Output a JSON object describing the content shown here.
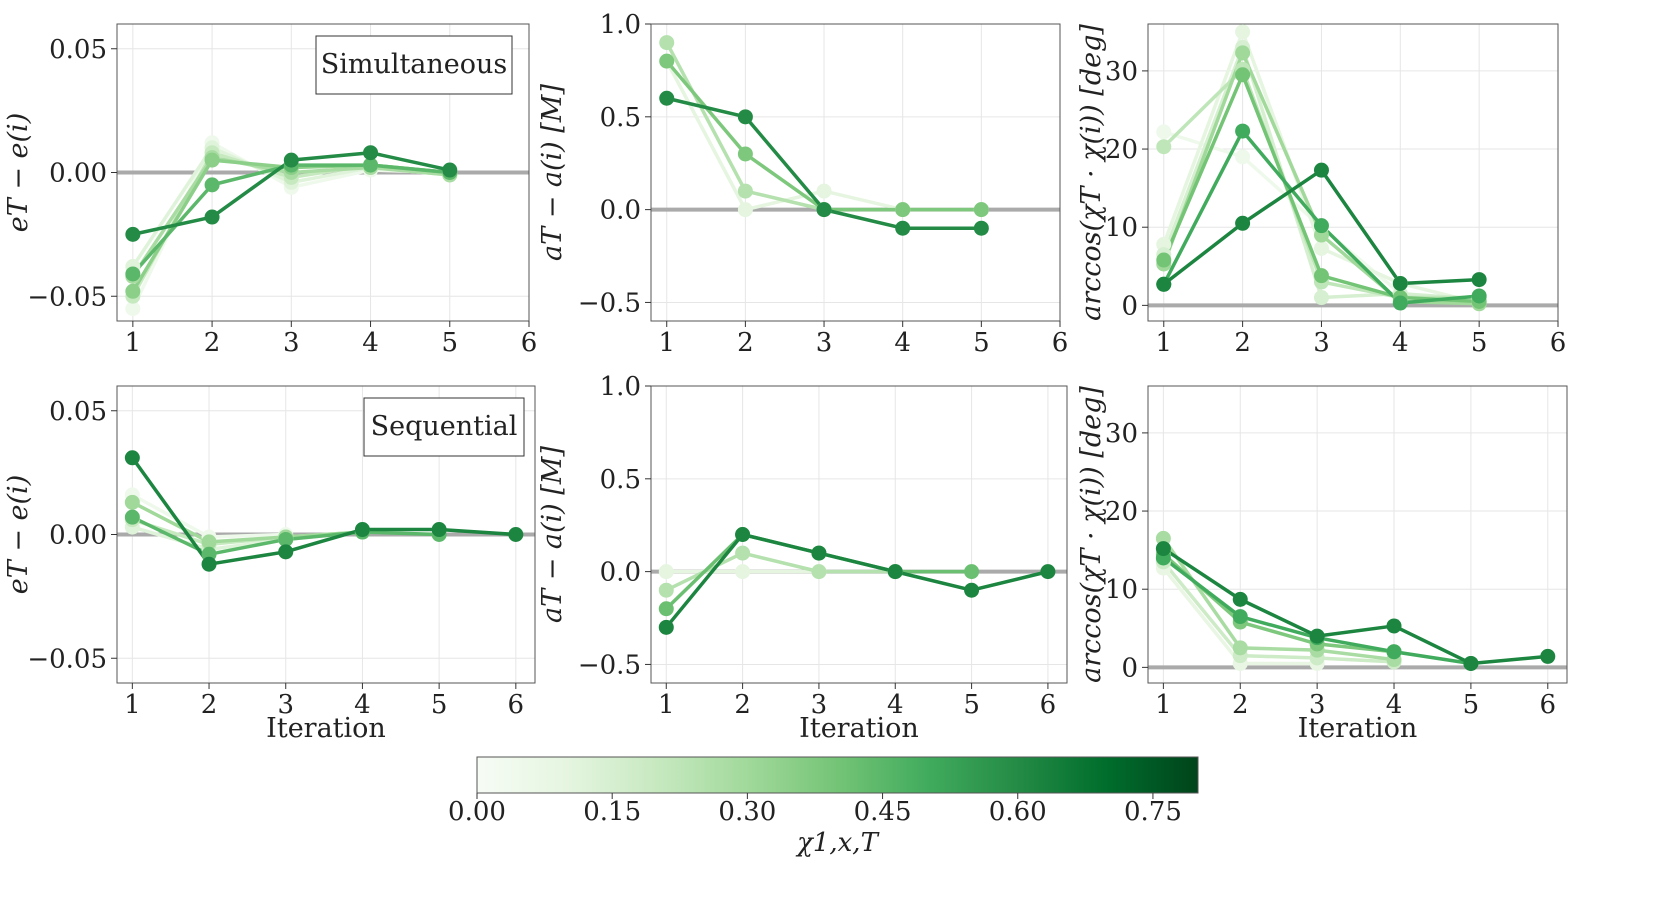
{
  "colors": {
    "low": "#c7e9c0",
    "mid": "#74c476",
    "high": "#1a8a45",
    "reference_line": "#aaaaaa",
    "grid": "#e6e6e6"
  },
  "colorbar": {
    "ticks": [
      "0.00",
      "0.15",
      "0.30",
      "0.45",
      "0.60",
      "0.75"
    ],
    "label": "χ1,x,T",
    "min": 0,
    "max": 0.8,
    "stops": [
      "#f7fcf5",
      "#e5f5e0",
      "#c7e9c0",
      "#a1d99b",
      "#74c476",
      "#41ab5d",
      "#238b45",
      "#006d2c",
      "#00441b"
    ]
  },
  "chart_data": [
    {
      "id": "e-simultaneous",
      "type": "line",
      "row": "Simultaneous",
      "legend": "Simultaneous",
      "xlabel": "",
      "ylabel": "eT − e(i)",
      "xlim": [
        0.8,
        6
      ],
      "ylim": [
        -0.06,
        0.06
      ],
      "xticks": [
        "1",
        "2",
        "3",
        "4",
        "5",
        "6"
      ],
      "yticks": [
        "−0.05",
        "0.00",
        "0.05"
      ],
      "ytick_values": [
        -0.05,
        0,
        0.05
      ],
      "series": [
        {
          "chi": 0.05,
          "x": [
            1,
            2,
            3,
            4,
            5
          ],
          "y": [
            -0.055,
            0.012,
            -0.006,
            0.001,
            0.0
          ]
        },
        {
          "chi": 0.12,
          "x": [
            1,
            2,
            3,
            4,
            5
          ],
          "y": [
            -0.038,
            0.01,
            -0.004,
            0.002,
            -0.001
          ]
        },
        {
          "chi": 0.2,
          "x": [
            1,
            2,
            3,
            4,
            5
          ],
          "y": [
            -0.05,
            0.008,
            -0.002,
            0.003,
            0.0
          ]
        },
        {
          "chi": 0.28,
          "x": [
            1,
            2,
            3,
            4,
            5
          ],
          "y": [
            -0.042,
            0.006,
            0.0,
            0.002,
            -0.001
          ]
        },
        {
          "chi": 0.35,
          "x": [
            1,
            2,
            3,
            4,
            5
          ],
          "y": [
            -0.048,
            0.005,
            0.002,
            0.003,
            0.0
          ]
        },
        {
          "chi": 0.45,
          "x": [
            1,
            2,
            3,
            4,
            5
          ],
          "y": [
            -0.041,
            -0.005,
            0.003,
            0.003,
            0.0
          ]
        },
        {
          "chi": 0.6,
          "x": [
            1,
            2,
            3,
            4,
            5
          ],
          "y": [
            -0.025,
            -0.018,
            0.005,
            0.008,
            0.001
          ]
        }
      ]
    },
    {
      "id": "a-simultaneous",
      "type": "line",
      "row": "Simultaneous",
      "xlabel": "",
      "ylabel": "aT − a(i) [M]",
      "xlim": [
        0.8,
        6
      ],
      "ylim": [
        -0.6,
        1.0
      ],
      "xticks": [
        "1",
        "2",
        "3",
        "4",
        "5",
        "6"
      ],
      "yticks": [
        "−0.5",
        "0.0",
        "0.5",
        "1.0"
      ],
      "ytick_values": [
        -0.5,
        0,
        0.5,
        1.0
      ],
      "series": [
        {
          "chi": 0.1,
          "x": [
            1,
            2,
            3,
            4,
            5
          ],
          "y": [
            0.8,
            0.0,
            0.1,
            0.0,
            0.0
          ]
        },
        {
          "chi": 0.25,
          "x": [
            1,
            2,
            3,
            4,
            5
          ],
          "y": [
            0.9,
            0.1,
            0.0,
            0.0,
            0.0
          ]
        },
        {
          "chi": 0.38,
          "x": [
            1,
            2,
            3,
            4,
            5
          ],
          "y": [
            0.8,
            0.3,
            0.0,
            0.0,
            0.0
          ]
        },
        {
          "chi": 0.6,
          "x": [
            1,
            2,
            3,
            4,
            5
          ],
          "y": [
            0.6,
            0.5,
            0.0,
            -0.1,
            -0.1
          ]
        }
      ]
    },
    {
      "id": "angle-simultaneous",
      "type": "line",
      "row": "Simultaneous",
      "xlabel": "",
      "ylabel": "arccos(χT · χ(i)) [deg]",
      "xlim": [
        0.8,
        6
      ],
      "ylim": [
        -2,
        36
      ],
      "xticks": [
        "1",
        "2",
        "3",
        "4",
        "5",
        "6"
      ],
      "yticks": [
        "0",
        "10",
        "20",
        "30"
      ],
      "ytick_values": [
        0,
        10,
        20,
        30
      ],
      "series": [
        {
          "chi": 0.05,
          "x": [
            1,
            2,
            3,
            4,
            5
          ],
          "y": [
            22.2,
            19.0,
            10.0,
            1.5,
            0.5
          ]
        },
        {
          "chi": 0.1,
          "x": [
            1,
            2,
            3,
            4,
            5
          ],
          "y": [
            7.8,
            35.0,
            7.3,
            2.8,
            0.3
          ]
        },
        {
          "chi": 0.15,
          "x": [
            1,
            2,
            3,
            4,
            5
          ],
          "y": [
            6.5,
            33.0,
            1.0,
            1.5,
            0.8
          ]
        },
        {
          "chi": 0.22,
          "x": [
            1,
            2,
            3,
            4,
            5
          ],
          "y": [
            20.3,
            30.2,
            3.0,
            1.0,
            1.0
          ]
        },
        {
          "chi": 0.3,
          "x": [
            1,
            2,
            3,
            4,
            5
          ],
          "y": [
            5.3,
            32.3,
            9.0,
            0.5,
            0.2
          ]
        },
        {
          "chi": 0.4,
          "x": [
            1,
            2,
            3,
            4,
            5
          ],
          "y": [
            5.8,
            29.5,
            3.8,
            1.0,
            0.5
          ]
        },
        {
          "chi": 0.5,
          "x": [
            1,
            2,
            3,
            4,
            5
          ],
          "y": [
            2.7,
            22.3,
            10.2,
            0.3,
            1.2
          ]
        },
        {
          "chi": 0.62,
          "x": [
            1,
            2,
            3,
            4,
            5
          ],
          "y": [
            2.7,
            10.5,
            17.3,
            2.8,
            3.3
          ]
        }
      ]
    },
    {
      "id": "e-sequential",
      "type": "line",
      "row": "Sequential",
      "legend": "Sequential",
      "xlabel": "Iteration",
      "ylabel": "eT − e(i)",
      "xlim": [
        0.8,
        6.25
      ],
      "ylim": [
        -0.06,
        0.06
      ],
      "xticks": [
        "1",
        "2",
        "3",
        "4",
        "5",
        "6"
      ],
      "yticks": [
        "−0.05",
        "0.00",
        "0.05"
      ],
      "ytick_values": [
        -0.05,
        0,
        0.05
      ],
      "series": [
        {
          "chi": 0.05,
          "x": [
            1,
            2,
            3
          ],
          "y": [
            0.016,
            -0.001,
            0.0
          ]
        },
        {
          "chi": 0.12,
          "x": [
            1,
            2,
            3,
            4
          ],
          "y": [
            0.003,
            -0.006,
            -0.002,
            0.001
          ]
        },
        {
          "chi": 0.2,
          "x": [
            1,
            2,
            3,
            4
          ],
          "y": [
            0.006,
            -0.004,
            -0.001,
            0.001
          ]
        },
        {
          "chi": 0.3,
          "x": [
            1,
            2,
            3,
            4
          ],
          "y": [
            0.013,
            -0.003,
            -0.001,
            0.001
          ]
        },
        {
          "chi": 0.45,
          "x": [
            1,
            2,
            3,
            4,
            5
          ],
          "y": [
            0.007,
            -0.008,
            -0.002,
            0.001,
            0.0
          ]
        },
        {
          "chi": 0.62,
          "x": [
            1,
            2,
            3,
            4,
            5,
            6
          ],
          "y": [
            0.031,
            -0.012,
            -0.007,
            0.002,
            0.002,
            0.0
          ]
        }
      ]
    },
    {
      "id": "a-sequential",
      "type": "line",
      "row": "Sequential",
      "xlabel": "Iteration",
      "ylabel": "aT − a(i) [M]",
      "xlim": [
        0.8,
        6.25
      ],
      "ylim": [
        -0.6,
        1.0
      ],
      "xticks": [
        "1",
        "2",
        "3",
        "4",
        "5",
        "6"
      ],
      "yticks": [
        "−0.5",
        "0.0",
        "0.5",
        "1.0"
      ],
      "ytick_values": [
        -0.5,
        0,
        0.5,
        1.0
      ],
      "series": [
        {
          "chi": 0.1,
          "x": [
            1,
            2,
            3
          ],
          "y": [
            0.0,
            0.0,
            0.0
          ]
        },
        {
          "chi": 0.25,
          "x": [
            1,
            2,
            3,
            4
          ],
          "y": [
            -0.1,
            0.1,
            0.0,
            0.0
          ]
        },
        {
          "chi": 0.42,
          "x": [
            1,
            2,
            3,
            4,
            5
          ],
          "y": [
            -0.2,
            0.2,
            0.1,
            0.0,
            0.0
          ]
        },
        {
          "chi": 0.62,
          "x": [
            1,
            2,
            3,
            4,
            5,
            6
          ],
          "y": [
            -0.3,
            0.2,
            0.1,
            0.0,
            -0.1,
            0.0
          ]
        }
      ]
    },
    {
      "id": "angle-sequential",
      "type": "line",
      "row": "Sequential",
      "xlabel": "Iteration",
      "ylabel": "arccos(χT · χ(i)) [deg]",
      "xlim": [
        0.8,
        6.25
      ],
      "ylim": [
        -2,
        36
      ],
      "xticks": [
        "1",
        "2",
        "3",
        "4",
        "5",
        "6"
      ],
      "yticks": [
        "0",
        "10",
        "20",
        "30"
      ],
      "ytick_values": [
        0,
        10,
        20,
        30
      ],
      "series": [
        {
          "chi": 0.08,
          "x": [
            1,
            2,
            3
          ],
          "y": [
            12.7,
            0.5,
            0.5
          ]
        },
        {
          "chi": 0.18,
          "x": [
            1,
            2,
            3,
            4
          ],
          "y": [
            13.5,
            1.5,
            1.2,
            0.7
          ]
        },
        {
          "chi": 0.28,
          "x": [
            1,
            2,
            3,
            4
          ],
          "y": [
            16.5,
            2.5,
            2.2,
            1.0
          ]
        },
        {
          "chi": 0.38,
          "x": [
            1,
            2,
            3,
            4
          ],
          "y": [
            14.5,
            5.8,
            3.0,
            2.0
          ]
        },
        {
          "chi": 0.5,
          "x": [
            1,
            2,
            3,
            4,
            5
          ],
          "y": [
            14.0,
            6.5,
            3.8,
            2.0,
            0.5
          ]
        },
        {
          "chi": 0.62,
          "x": [
            1,
            2,
            3,
            4,
            5,
            6
          ],
          "y": [
            15.2,
            8.7,
            4.0,
            5.3,
            0.5,
            1.4
          ]
        }
      ]
    }
  ]
}
